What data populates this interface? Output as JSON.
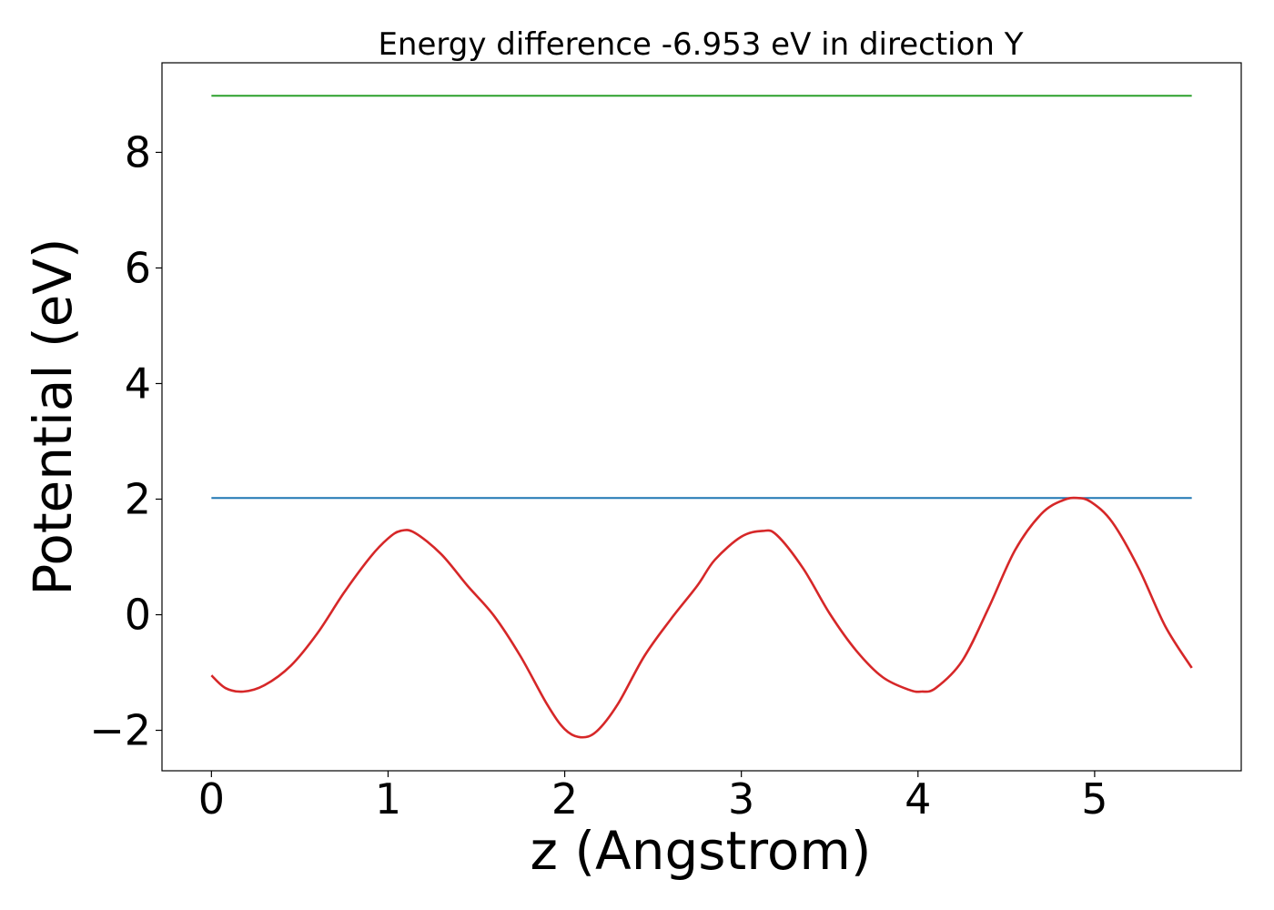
{
  "chart_data": {
    "type": "line",
    "title": "Energy difference -6.953 eV in direction Y",
    "xlabel": "z (Angstrom)",
    "ylabel": "Potential (eV)",
    "xlim": [
      -0.28,
      5.83
    ],
    "ylim": [
      -2.7,
      9.55
    ],
    "x_ticks": [
      0,
      1,
      2,
      3,
      4,
      5
    ],
    "x_tick_labels": [
      "0",
      "1",
      "2",
      "3",
      "4",
      "5"
    ],
    "y_ticks": [
      -2,
      0,
      2,
      4,
      6,
      8
    ],
    "y_tick_labels": [
      "−2",
      "0",
      "2",
      "4",
      "6",
      "8"
    ],
    "grid": false,
    "series": [
      {
        "kind": "hline",
        "color": "#2ca02c",
        "x": [
          0,
          5.55
        ],
        "y": [
          8.98,
          8.98
        ]
      },
      {
        "kind": "hline",
        "color": "#1f77b4",
        "x": [
          0,
          5.55
        ],
        "y": [
          2.02,
          2.02
        ]
      },
      {
        "kind": "curve",
        "color": "#d62728",
        "x": [
          0,
          0.08,
          0.18,
          0.3,
          0.45,
          0.6,
          0.75,
          0.9,
          1.0,
          1.07,
          1.15,
          1.3,
          1.45,
          1.6,
          1.75,
          1.9,
          2.0,
          2.09,
          2.18,
          2.3,
          2.45,
          2.6,
          2.75,
          2.85,
          3.0,
          3.12,
          3.2,
          3.35,
          3.5,
          3.65,
          3.8,
          3.95,
          4.02,
          4.1,
          4.25,
          4.4,
          4.55,
          4.7,
          4.82,
          4.9,
          4.98,
          5.1,
          5.25,
          5.4,
          5.55
        ],
        "y": [
          -1.05,
          -1.27,
          -1.33,
          -1.22,
          -0.88,
          -0.32,
          0.38,
          1.0,
          1.32,
          1.45,
          1.42,
          1.05,
          0.5,
          -0.02,
          -0.72,
          -1.55,
          -1.98,
          -2.12,
          -2.02,
          -1.55,
          -0.72,
          -0.08,
          0.5,
          0.95,
          1.35,
          1.45,
          1.38,
          0.8,
          0.02,
          -0.62,
          -1.08,
          -1.3,
          -1.33,
          -1.27,
          -0.8,
          0.12,
          1.12,
          1.75,
          1.98,
          2.02,
          1.95,
          1.6,
          0.8,
          -0.2,
          -0.92
        ]
      }
    ]
  }
}
